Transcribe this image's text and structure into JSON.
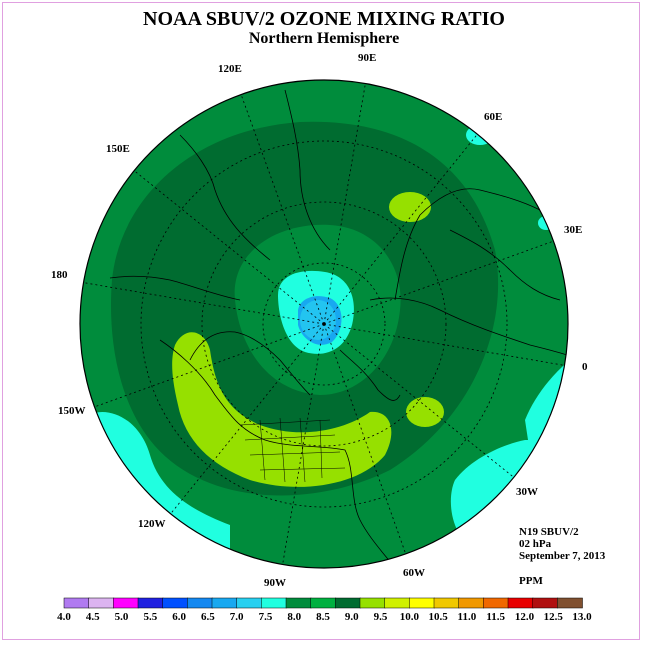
{
  "title": "NOAA SBUV/2 OZONE MIXING RATIO",
  "subtitle": "Northern Hemisphere",
  "longitude_labels": {
    "lon_90e": "90E",
    "lon_60e": "60E",
    "lon_30e": "30E",
    "lon_0": "0",
    "lon_30w": "30W",
    "lon_60w": "60W",
    "lon_90w": "90W",
    "lon_120w": "120W",
    "lon_150w": "150W",
    "lon_180": "180",
    "lon_150e": "150E",
    "lon_120e": "120E"
  },
  "info": {
    "instrument": "N19 SBUV/2",
    "level": "02 hPa",
    "date": "September 7, 2013",
    "units": "PPM"
  },
  "colorbar": {
    "labels": [
      "4.0",
      "4.5",
      "5.0",
      "5.5",
      "6.0",
      "6.5",
      "7.0",
      "7.5",
      "8.0",
      "8.5",
      "9.0",
      "9.5",
      "10.0",
      "10.5",
      "11.0",
      "11.5",
      "12.0",
      "12.5",
      "13.0"
    ],
    "colors": [
      "#b07af0",
      "#dcb4f0",
      "#ff00ff",
      "#2020e0",
      "#0050ff",
      "#1488f0",
      "#18a8f0",
      "#28d0f0",
      "#20ffe0",
      "#008c3c",
      "#00b040",
      "#006c30",
      "#96e000",
      "#d0f000",
      "#ffff00",
      "#f0c800",
      "#f09800",
      "#f06800",
      "#e80000",
      "#b01010",
      "#805030"
    ]
  },
  "map_colors": {
    "level_8_0": "#20ffe0",
    "level_8_5": "#008c3c",
    "level_9_0": "#006c30",
    "level_9_5": "#96e000",
    "level_7_5": "#28d0f0",
    "level_7_0": "#18a8f0",
    "outline": "#000000"
  }
}
